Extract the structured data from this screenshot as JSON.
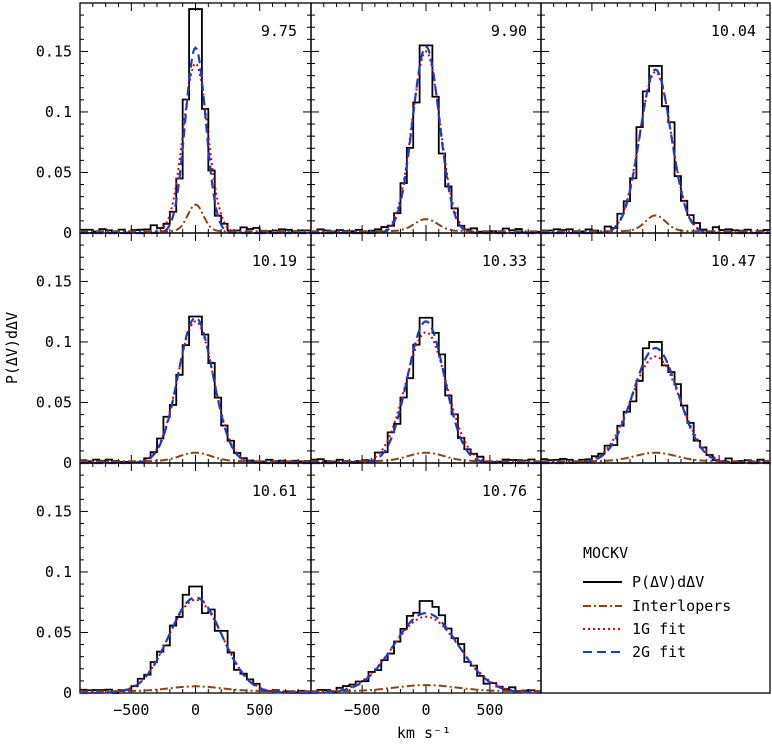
{
  "colors": {
    "histogram": "#000000",
    "interlopers": "#8b4513",
    "fit_1g": "#e00000",
    "fit_2g": "#1a3ccc"
  },
  "chart_data": {
    "type": "line",
    "xlabel": "km s⁻¹",
    "ylabel": "P(ΔV)dΔV",
    "xlim": [
      -900,
      900
    ],
    "ylim": [
      0,
      0.19
    ],
    "xticks": [
      -500,
      0,
      500
    ],
    "yticks": [
      0,
      0.05,
      0.1,
      0.15
    ],
    "xtick_labels": [
      "−500",
      "0",
      "500"
    ],
    "ytick_labels": [
      "0",
      "0.05",
      "0.1",
      "0.15"
    ],
    "grid": false,
    "legend": {
      "placement": "bottom-right panel",
      "title": "MOCKV",
      "entries": [
        {
          "key": "histogram",
          "label": "P(ΔV)dΔV"
        },
        {
          "key": "interlopers",
          "label": "Interlopers"
        },
        {
          "key": "fit_1g",
          "label": "1G fit"
        },
        {
          "key": "fit_2g",
          "label": "2G fit"
        }
      ]
    },
    "panels": [
      {
        "label": "9.75",
        "fit_1g": {
          "amp": 0.14,
          "sigma": 95
        },
        "fit_2g": {
          "amp": 0.153,
          "sigma": 80
        },
        "interlopers": {
          "amp": 0.022,
          "sigma": 60
        },
        "hist_peak": 0.185
      },
      {
        "label": "9.90",
        "fit_1g": {
          "amp": 0.15,
          "sigma": 110
        },
        "fit_2g": {
          "amp": 0.154,
          "sigma": 105
        },
        "interlopers": {
          "amp": 0.01,
          "sigma": 90
        },
        "hist_peak": 0.155
      },
      {
        "label": "10.04",
        "fit_1g": {
          "amp": 0.133,
          "sigma": 125
        },
        "fit_2g": {
          "amp": 0.135,
          "sigma": 122
        },
        "interlopers": {
          "amp": 0.013,
          "sigma": 80
        },
        "hist_peak": 0.138
      },
      {
        "label": "10.19",
        "fit_1g": {
          "amp": 0.117,
          "sigma": 140
        },
        "fit_2g": {
          "amp": 0.12,
          "sigma": 136
        },
        "interlopers": {
          "amp": 0.007,
          "sigma": 120
        },
        "hist_peak": 0.121
      },
      {
        "label": "10.33",
        "fit_1g": {
          "amp": 0.108,
          "sigma": 160
        },
        "fit_2g": {
          "amp": 0.117,
          "sigma": 145
        },
        "interlopers": {
          "amp": 0.007,
          "sigma": 140
        },
        "hist_peak": 0.12
      },
      {
        "label": "10.47",
        "fit_1g": {
          "amp": 0.088,
          "sigma": 190
        },
        "fit_2g": {
          "amp": 0.095,
          "sigma": 178
        },
        "interlopers": {
          "amp": 0.007,
          "sigma": 160
        },
        "hist_peak": 0.1
      },
      {
        "label": "10.61",
        "fit_1g": {
          "amp": 0.077,
          "sigma": 210
        },
        "fit_2g": {
          "amp": 0.079,
          "sigma": 205
        },
        "interlopers": {
          "amp": 0.004,
          "sigma": 200
        },
        "hist_peak": 0.088
      },
      {
        "label": "10.76",
        "fit_1g": {
          "amp": 0.063,
          "sigma": 260
        },
        "fit_2g": {
          "amp": 0.066,
          "sigma": 250
        },
        "interlopers": {
          "amp": 0.005,
          "sigma": 240
        },
        "hist_peak": 0.076
      }
    ]
  }
}
